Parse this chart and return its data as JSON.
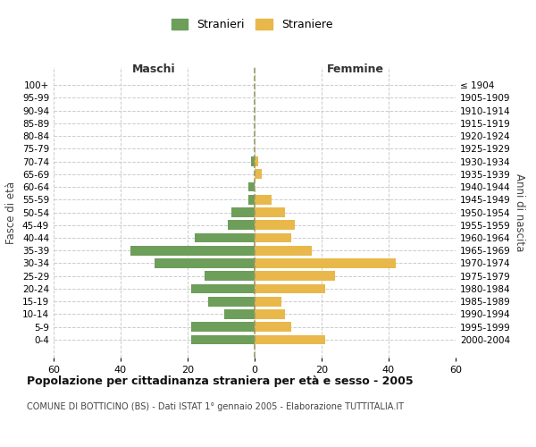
{
  "age_groups": [
    "100+",
    "95-99",
    "90-94",
    "85-89",
    "80-84",
    "75-79",
    "70-74",
    "65-69",
    "60-64",
    "55-59",
    "50-54",
    "45-49",
    "40-44",
    "35-39",
    "30-34",
    "25-29",
    "20-24",
    "15-19",
    "10-14",
    "5-9",
    "0-4"
  ],
  "birth_years": [
    "≤ 1904",
    "1905-1909",
    "1910-1914",
    "1915-1919",
    "1920-1924",
    "1925-1929",
    "1930-1934",
    "1935-1939",
    "1940-1944",
    "1945-1949",
    "1950-1954",
    "1955-1959",
    "1960-1964",
    "1965-1969",
    "1970-1974",
    "1975-1979",
    "1980-1984",
    "1985-1989",
    "1990-1994",
    "1995-1999",
    "2000-2004"
  ],
  "males": [
    0,
    0,
    0,
    0,
    0,
    0,
    1,
    0,
    2,
    2,
    7,
    8,
    18,
    37,
    30,
    15,
    19,
    14,
    9,
    19,
    19
  ],
  "females": [
    0,
    0,
    0,
    0,
    0,
    0,
    1,
    2,
    0,
    5,
    9,
    12,
    11,
    17,
    42,
    24,
    21,
    8,
    9,
    11,
    21
  ],
  "male_color": "#6d9e5a",
  "female_color": "#e8b84b",
  "background_color": "#ffffff",
  "grid_color": "#cccccc",
  "center_line_color": "#999966",
  "xlim": 60,
  "title": "Popolazione per cittadinanza straniera per età e sesso - 2005",
  "subtitle": "COMUNE DI BOTTICINO (BS) - Dati ISTAT 1° gennaio 2005 - Elaborazione TUTTITALIA.IT",
  "legend_males": "Stranieri",
  "legend_females": "Straniere",
  "xlabel_left": "Maschi",
  "xlabel_right": "Femmine",
  "ylabel_left": "Fasce di età",
  "ylabel_right": "Anni di nascita"
}
